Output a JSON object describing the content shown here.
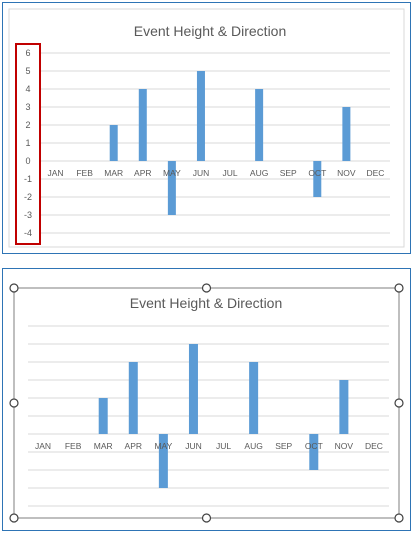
{
  "colors": {
    "bar": "#5b9bd5",
    "grid": "#d9d9d9",
    "text": "#595959",
    "frame": "#2e74b5",
    "highlight": "#c00000",
    "selection": "#7f7f7f",
    "handle_fill": "#ffffff",
    "handle_stroke": "#404040"
  },
  "chart_data": [
    {
      "type": "bar",
      "title": "Event Height & Direction",
      "categories": [
        "JAN",
        "FEB",
        "MAR",
        "APR",
        "MAY",
        "JUN",
        "JUL",
        "AUG",
        "SEP",
        "OCT",
        "NOV",
        "DEC"
      ],
      "values": [
        0,
        0,
        2,
        4,
        -3,
        5,
        0,
        4,
        0,
        -2,
        3,
        0
      ],
      "ylim": [
        -4,
        6
      ],
      "yticks": [
        "6",
        "5",
        "4",
        "3",
        "2",
        "1",
        "0",
        "-1",
        "-2",
        "-3",
        "-4"
      ],
      "grid": true,
      "y_axis_labels_visible": true,
      "y_axis_highlighted": true
    },
    {
      "type": "bar",
      "title": "Event Height & Direction",
      "categories": [
        "JAN",
        "FEB",
        "MAR",
        "APR",
        "MAY",
        "JUN",
        "JUL",
        "AUG",
        "SEP",
        "OCT",
        "NOV",
        "DEC"
      ],
      "values": [
        0,
        0,
        2,
        4,
        -3,
        5,
        0,
        4,
        0,
        -2,
        3,
        0
      ],
      "ylim": [
        -4,
        6
      ],
      "grid": true,
      "y_axis_labels_visible": false,
      "selected": true
    }
  ]
}
